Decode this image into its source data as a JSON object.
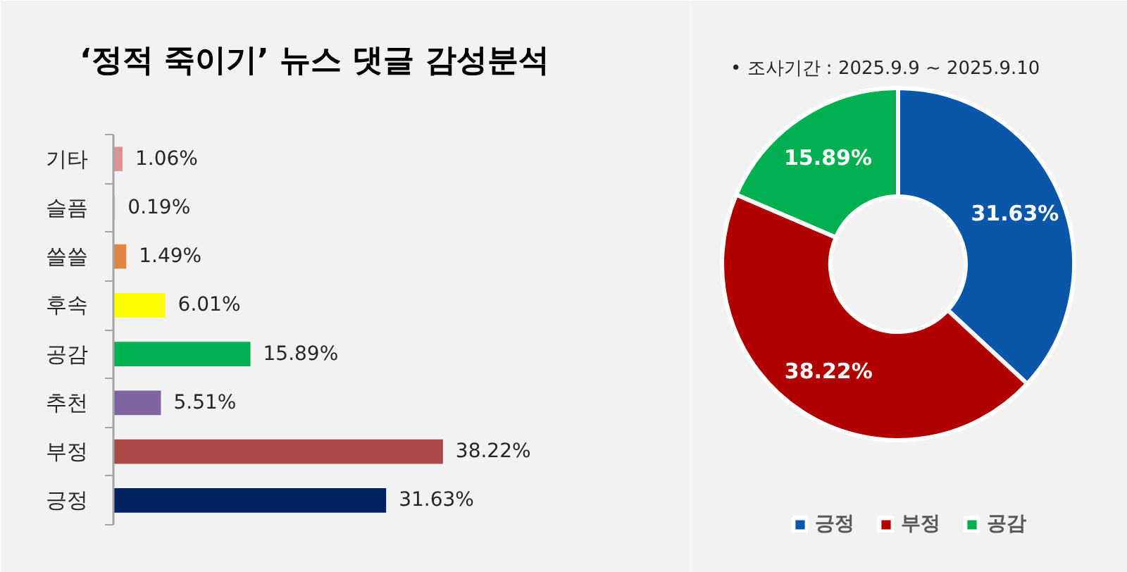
{
  "chart_data": [
    {
      "type": "bar",
      "orientation": "horizontal",
      "title": "‘정적 죽이기’ 뉴스 댓글 감성분석",
      "categories": [
        "기타",
        "슬픔",
        "쓸쓸",
        "후속",
        "공감",
        "추천",
        "부정",
        "긍정"
      ],
      "values": [
        1.06,
        0.19,
        1.49,
        6.01,
        15.89,
        5.51,
        38.22,
        31.63
      ],
      "colors": [
        "#d99594",
        "#c9d3ea",
        "#e0843f",
        "#ffff00",
        "#00b050",
        "#8064a2",
        "#ad4846",
        "#002060"
      ],
      "value_labels": [
        "1.06%",
        "0.19%",
        "1.49%",
        "6.01%",
        "15.89%",
        "5.51%",
        "38.22%",
        "31.63%"
      ],
      "tick_labels": "y"
    },
    {
      "type": "donut",
      "categories": [
        "긍정",
        "부정",
        "공감"
      ],
      "values": [
        31.63,
        38.22,
        15.89
      ],
      "colors": [
        "#0a56a8",
        "#b00000",
        "#00b050"
      ],
      "value_labels": [
        "31.63%",
        "38.22%",
        "15.89%"
      ],
      "legend": "bottom",
      "annotations": [
        "•  조사기간 : 2025.9.9 ~ 2025.9.10"
      ]
    }
  ]
}
